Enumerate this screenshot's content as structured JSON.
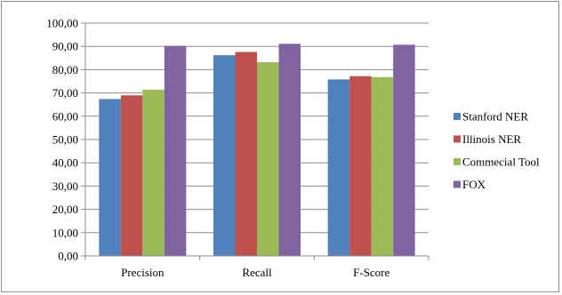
{
  "chart_data": {
    "type": "bar",
    "categories": [
      "Precision",
      "Recall",
      "F-Score"
    ],
    "series": [
      {
        "name": "Stanford NER",
        "color": "#4f81bd",
        "values": [
          67.4,
          86.2,
          75.8
        ]
      },
      {
        "name": "Illinois NER",
        "color": "#c0504d",
        "values": [
          69.0,
          87.6,
          77.2
        ]
      },
      {
        "name": "Commecial Tool",
        "color": "#9bbb59",
        "values": [
          71.4,
          83.2,
          76.8
        ]
      },
      {
        "name": "FOX",
        "color": "#8064a2",
        "values": [
          90.2,
          91.1,
          90.7
        ]
      }
    ],
    "ylim": [
      0,
      100
    ],
    "yticks": [
      "0,00",
      "10,00",
      "20,00",
      "30,00",
      "40,00",
      "50,00",
      "60,00",
      "70,00",
      "80,00",
      "90,00",
      "100,00"
    ],
    "grid": true,
    "legend": "right"
  }
}
